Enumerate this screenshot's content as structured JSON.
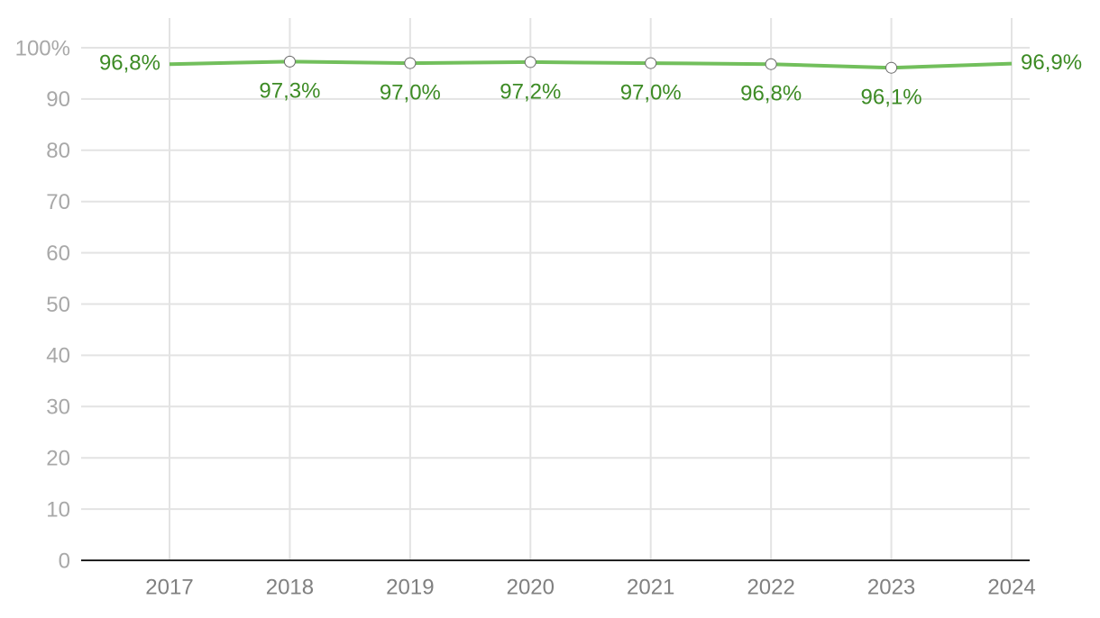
{
  "chart_data": {
    "type": "line",
    "categories": [
      "2017",
      "2018",
      "2019",
      "2020",
      "2021",
      "2022",
      "2023",
      "2024"
    ],
    "values": [
      96.8,
      97.3,
      97.0,
      97.2,
      97.0,
      96.8,
      96.1,
      96.9
    ],
    "value_labels": [
      "96,8%",
      "97,3%",
      "97,0%",
      "97,2%",
      "97,0%",
      "96,8%",
      "96,1%",
      "96,9%"
    ],
    "color": "#72bf5c",
    "ylim": [
      0,
      100
    ],
    "yticks": [
      0,
      10,
      20,
      30,
      40,
      50,
      60,
      70,
      80,
      90,
      {
        "value": 100,
        "label": "100%"
      }
    ],
    "grid": true
  }
}
